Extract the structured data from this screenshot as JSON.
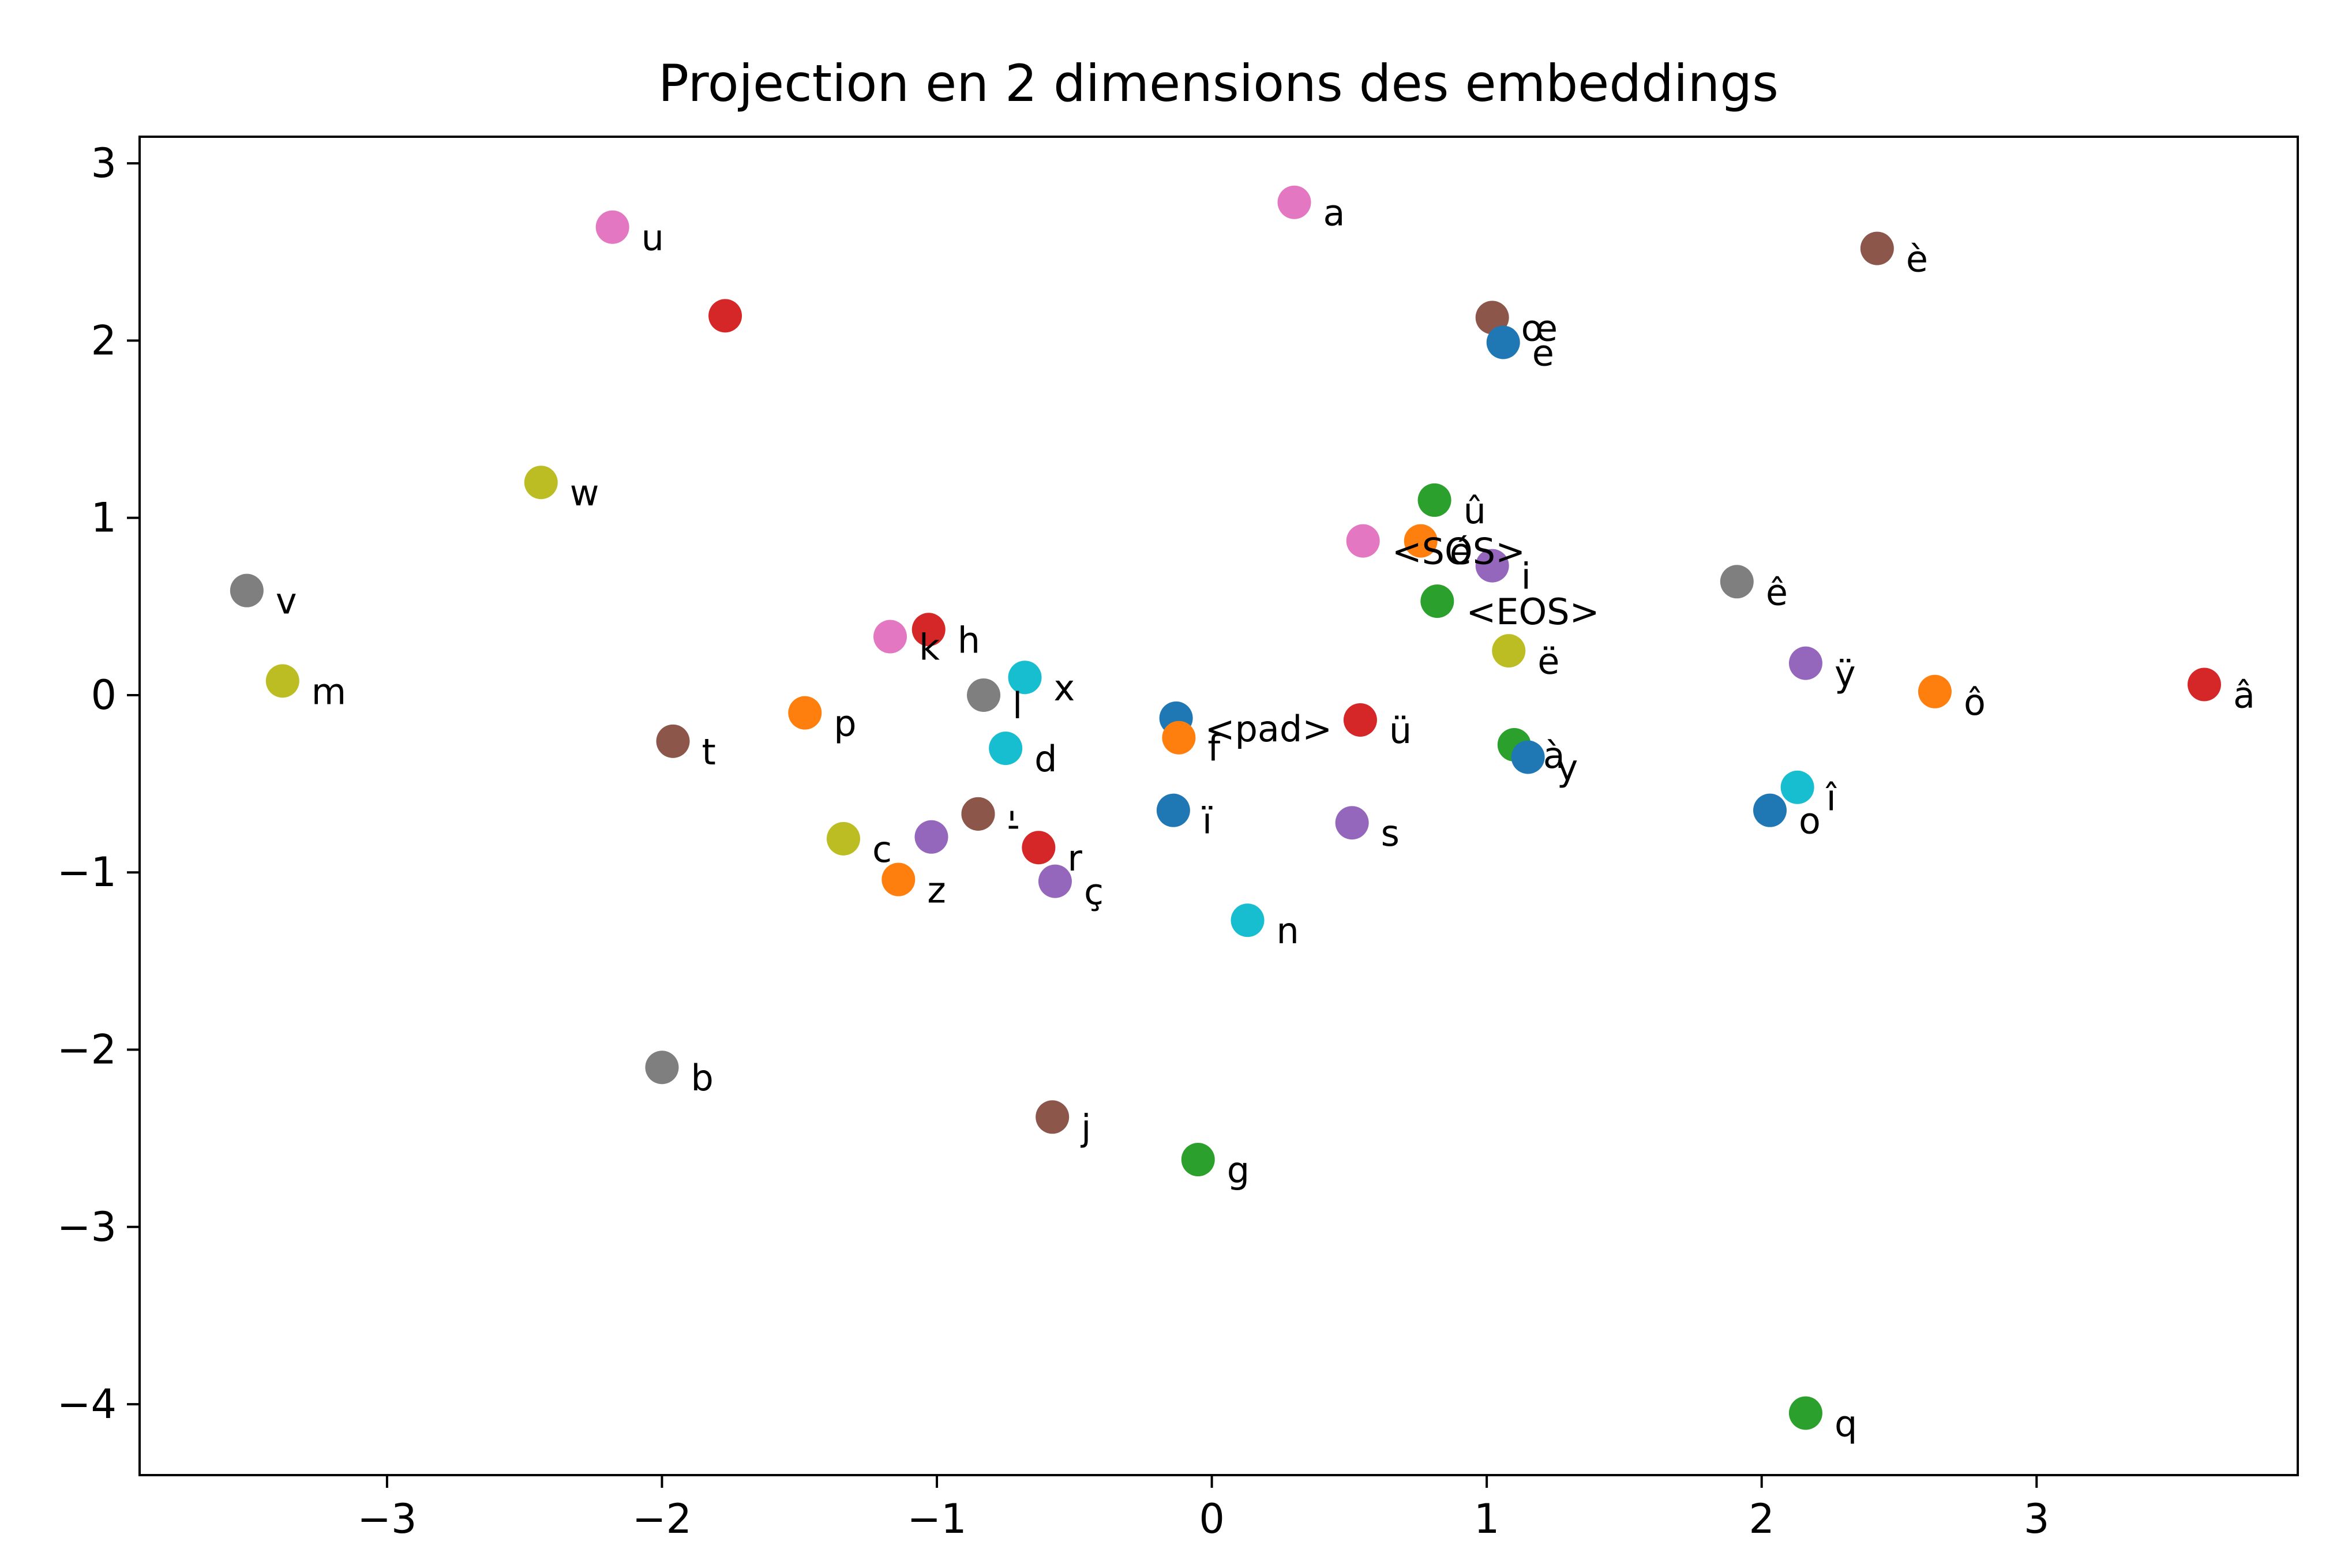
{
  "chart_data": {
    "type": "scatter",
    "title": "Projection en 2 dimensions des embeddings",
    "xlabel": "",
    "ylabel": "",
    "xlim": [
      -3.9,
      3.95
    ],
    "ylim": [
      -4.4,
      3.15
    ],
    "xticks": [
      -3,
      -2,
      -1,
      0,
      1,
      2,
      3
    ],
    "yticks": [
      3,
      2,
      1,
      0,
      -1,
      -2,
      -3,
      -4
    ],
    "xtick_labels": [
      "−3",
      "−2",
      "−1",
      "0",
      "1",
      "2",
      "3"
    ],
    "ytick_labels": [
      "3",
      "2",
      "1",
      "0",
      "−1",
      "−2",
      "−3",
      "−4"
    ],
    "grid": false,
    "legend": "none",
    "points": [
      {
        "label": "<pad>",
        "x": -0.13,
        "y": -0.13,
        "color": "#1f77b4"
      },
      {
        "label": "<SOS>",
        "x": 0.55,
        "y": 0.87,
        "color": "#e377c2"
      },
      {
        "label": "<EOS>",
        "x": 0.82,
        "y": 0.53,
        "color": "#2ca02c"
      },
      {
        "label": "a",
        "x": 0.3,
        "y": 2.78,
        "color": "#e377c2"
      },
      {
        "label": "u",
        "x": -2.18,
        "y": 2.64,
        "color": "#e377c2"
      },
      {
        "label": "",
        "x": -1.77,
        "y": 2.14,
        "color": "#d62728"
      },
      {
        "label": "è",
        "x": 2.42,
        "y": 2.52,
        "color": "#8c564b"
      },
      {
        "label": "œ",
        "x": 1.02,
        "y": 2.13,
        "color": "#8c564b"
      },
      {
        "label": "e",
        "x": 1.06,
        "y": 1.99,
        "color": "#1f77b4"
      },
      {
        "label": "w",
        "x": -2.44,
        "y": 1.2,
        "color": "#bcbd22"
      },
      {
        "label": "û",
        "x": 0.81,
        "y": 1.1,
        "color": "#2ca02c"
      },
      {
        "label": "é",
        "x": 0.76,
        "y": 0.87,
        "color": "#ff7f0e"
      },
      {
        "label": "i",
        "x": 1.02,
        "y": 0.73,
        "color": "#9467bd"
      },
      {
        "label": "ê",
        "x": 1.91,
        "y": 0.64,
        "color": "#7f7f7f"
      },
      {
        "label": "v",
        "x": -3.51,
        "y": 0.59,
        "color": "#7f7f7f"
      },
      {
        "label": "h",
        "x": -1.03,
        "y": 0.37,
        "color": "#d62728"
      },
      {
        "label": "k",
        "x": -1.17,
        "y": 0.33,
        "color": "#e377c2"
      },
      {
        "label": "ë",
        "x": 1.08,
        "y": 0.25,
        "color": "#bcbd22"
      },
      {
        "label": "ÿ",
        "x": 2.16,
        "y": 0.18,
        "color": "#9467bd"
      },
      {
        "label": "x",
        "x": -0.68,
        "y": 0.1,
        "color": "#17becf"
      },
      {
        "label": "m",
        "x": -3.38,
        "y": 0.08,
        "color": "#bcbd22"
      },
      {
        "label": "â",
        "x": 3.61,
        "y": 0.06,
        "color": "#d62728"
      },
      {
        "label": "ô",
        "x": 2.63,
        "y": 0.02,
        "color": "#ff7f0e"
      },
      {
        "label": "l",
        "x": -0.83,
        "y": 0.0,
        "color": "#7f7f7f"
      },
      {
        "label": "p",
        "x": -1.48,
        "y": -0.1,
        "color": "#ff7f0e"
      },
      {
        "label": "ü",
        "x": 0.54,
        "y": -0.14,
        "color": "#d62728"
      },
      {
        "label": "f",
        "x": -0.12,
        "y": -0.24,
        "color": "#ff7f0e"
      },
      {
        "label": "t",
        "x": -1.96,
        "y": -0.26,
        "color": "#8c564b"
      },
      {
        "label": "à",
        "x": 1.1,
        "y": -0.28,
        "color": "#2ca02c"
      },
      {
        "label": "d",
        "x": -0.75,
        "y": -0.3,
        "color": "#17becf"
      },
      {
        "label": "y",
        "x": 1.15,
        "y": -0.35,
        "color": "#1f77b4"
      },
      {
        "label": "î",
        "x": 2.13,
        "y": -0.52,
        "color": "#17becf"
      },
      {
        "label": "o",
        "x": 2.03,
        "y": -0.65,
        "color": "#1f77b4"
      },
      {
        "label": "ï",
        "x": -0.14,
        "y": -0.65,
        "color": "#1f77b4"
      },
      {
        "label": "'",
        "x": -0.85,
        "y": -0.67,
        "color": "#8c564b"
      },
      {
        "label": "-",
        "x": -0.85,
        "y": -0.67,
        "color": "#8c564b"
      },
      {
        "label": "s",
        "x": 0.51,
        "y": -0.72,
        "color": "#9467bd"
      },
      {
        "label": "c",
        "x": -1.34,
        "y": -0.81,
        "color": "#bcbd22"
      },
      {
        "label": "",
        "x": -1.02,
        "y": -0.8,
        "color": "#9467bd"
      },
      {
        "label": "r",
        "x": -0.63,
        "y": -0.86,
        "color": "#d62728"
      },
      {
        "label": "z",
        "x": -1.14,
        "y": -1.04,
        "color": "#ff7f0e"
      },
      {
        "label": "ç",
        "x": -0.57,
        "y": -1.05,
        "color": "#9467bd"
      },
      {
        "label": "n",
        "x": 0.13,
        "y": -1.27,
        "color": "#17becf"
      },
      {
        "label": "b",
        "x": -2.0,
        "y": -2.1,
        "color": "#7f7f7f"
      },
      {
        "label": "j",
        "x": -0.58,
        "y": -2.38,
        "color": "#8c564b"
      },
      {
        "label": "g",
        "x": -0.05,
        "y": -2.62,
        "color": "#2ca02c"
      },
      {
        "label": "q",
        "x": 2.16,
        "y": -4.05,
        "color": "#2ca02c"
      }
    ]
  }
}
